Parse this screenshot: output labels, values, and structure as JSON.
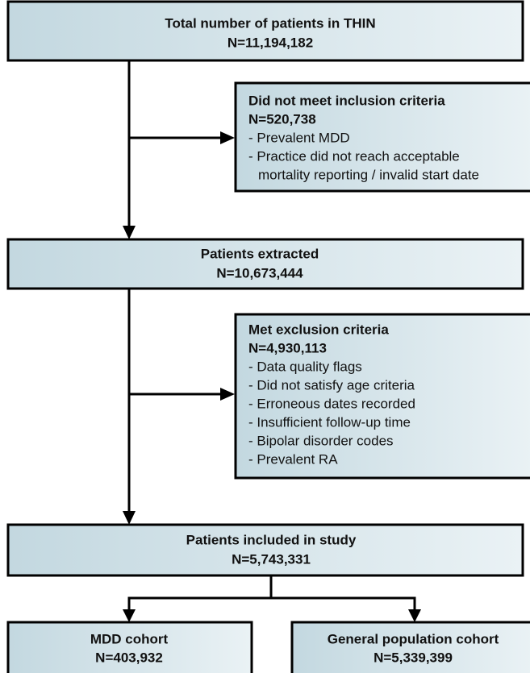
{
  "nodes": [
    {
      "title": "Total number of patients in THIN",
      "count": "N=11,194,182"
    },
    {
      "title": "Patients extracted",
      "count": "N=10,673,444"
    },
    {
      "title": "Patients included in study",
      "count": "N=5,743,331"
    },
    {
      "title": "MDD cohort",
      "count": "N=403,932"
    },
    {
      "title": "General population cohort",
      "count": "N=5,339,399"
    }
  ],
  "exclusions": [
    {
      "title": "Did not meet inclusion criteria",
      "count": "N=520,738",
      "lines": [
        "- Prevalent MDD",
        "- Practice did not reach acceptable",
        "mortality reporting / invalid start date"
      ]
    },
    {
      "title": "Met exclusion criteria",
      "count": "N=4,930,113",
      "lines": [
        "- Data quality flags",
        "- Did not satisfy age criteria",
        "- Erroneous dates recorded",
        "- Insufficient follow-up time",
        "- Bipolar disorder codes",
        "- Prevalent RA"
      ]
    }
  ]
}
